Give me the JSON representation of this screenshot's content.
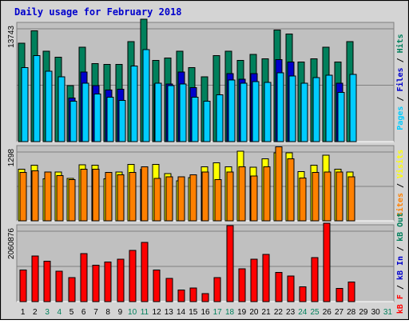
{
  "chart_data": [
    {
      "type": "bar",
      "title": "Daily usage for February 2018",
      "categories": [
        "1",
        "2",
        "3",
        "4",
        "5",
        "6",
        "7",
        "8",
        "9",
        "10",
        "11",
        "12",
        "13",
        "14",
        "15",
        "16",
        "17",
        "18",
        "19",
        "20",
        "21",
        "22",
        "23",
        "24",
        "25",
        "26",
        "27",
        "28",
        "29",
        "30",
        "31"
      ],
      "weekend_days": [
        3,
        4,
        10,
        11,
        17,
        18,
        24,
        25,
        31
      ],
      "ytick_label": "13743",
      "ymax": 13743,
      "ylabel_parts": [
        {
          "text": "Pages",
          "color": "#00ccff"
        },
        {
          "text": " / ",
          "color": "#000000"
        },
        {
          "text": "Files",
          "color": "#0000cc"
        },
        {
          "text": " / ",
          "color": "#000000"
        },
        {
          "text": "Hits",
          "color": "#00805c"
        }
      ],
      "series": [
        {
          "name": "Hits",
          "color": "#00805c",
          "values": [
            12000,
            13500,
            11000,
            10300,
            6800,
            11500,
            9500,
            9400,
            9400,
            12200,
            14900,
            9900,
            10200,
            11000,
            9000,
            7900,
            10500,
            11000,
            9900,
            10600,
            10100,
            13600,
            13100,
            9700,
            10100,
            11500,
            9700,
            12200,
            0,
            0,
            0
          ]
        },
        {
          "name": "Files",
          "color": "#0000cc",
          "values": [
            0,
            0,
            0,
            0,
            5300,
            8500,
            6800,
            6300,
            6400,
            0,
            0,
            7000,
            7000,
            8500,
            6600,
            0,
            0,
            8300,
            7600,
            8300,
            0,
            10000,
            9700,
            0,
            0,
            0,
            7100,
            0,
            0,
            0,
            0
          ]
        },
        {
          "name": "Pages",
          "color": "#00ccff",
          "values": [
            9000,
            10500,
            8600,
            7900,
            4900,
            7100,
            5800,
            5400,
            5000,
            9200,
            11200,
            7100,
            6800,
            7000,
            5400,
            4900,
            5700,
            7500,
            7100,
            7300,
            7200,
            8400,
            8000,
            7100,
            7800,
            8100,
            6000,
            8200,
            0,
            0,
            0
          ]
        }
      ]
    },
    {
      "type": "bar",
      "ytick_label": "1298",
      "ymax": 1298,
      "ylabel_parts": [
        {
          "text": "Sites",
          "color": "#ff8000"
        },
        {
          "text": " / ",
          "color": "#000000"
        },
        {
          "text": "Visits",
          "color": "#ffff00"
        }
      ],
      "series": [
        {
          "name": "Visits",
          "color": "#ffff00",
          "values": [
            975,
            1050,
            795,
            918,
            800,
            1058,
            1050,
            795,
            918,
            1065,
            974,
            1066,
            889,
            753,
            814,
            1022,
            1097,
            1020,
            1316,
            1013,
            1167,
            1283,
            1283,
            928,
            1050,
            1240,
            970,
            918,
            0,
            0,
            0
          ]
        },
        {
          "name": "Sites",
          "color": "#ff8000",
          "values": [
            910,
            945,
            920,
            851,
            775,
            975,
            976,
            910,
            865,
            910,
            1020,
            800,
            829,
            833,
            865,
            920,
            780,
            920,
            1020,
            845,
            1020,
            1398,
            1170,
            810,
            911,
            920,
            920,
            832,
            0,
            0,
            0
          ]
        }
      ]
    },
    {
      "type": "bar",
      "ytick_label": "2060876",
      "ymax": 2060876,
      "ylabel_parts": [
        {
          "text": "kB F",
          "color": "#ff0000"
        },
        {
          "text": " / ",
          "color": "#000000"
        },
        {
          "text": "kB In",
          "color": "#0000cc"
        },
        {
          "text": " / ",
          "color": "#000000"
        },
        {
          "text": "kB Out",
          "color": "#00805c"
        }
      ],
      "series": [
        {
          "name": "kB F",
          "color": "#ff0000",
          "values": [
            930000,
            1330000,
            1180000,
            890000,
            700000,
            1400000,
            1060000,
            1160000,
            1245000,
            1500000,
            1738000,
            920000,
            684000,
            340000,
            395000,
            233000,
            700000,
            2220000,
            957000,
            1245000,
            1378000,
            850000,
            747000,
            431000,
            1290000,
            2290000,
            382000,
            575000,
            0,
            0,
            0
          ]
        }
      ]
    }
  ]
}
